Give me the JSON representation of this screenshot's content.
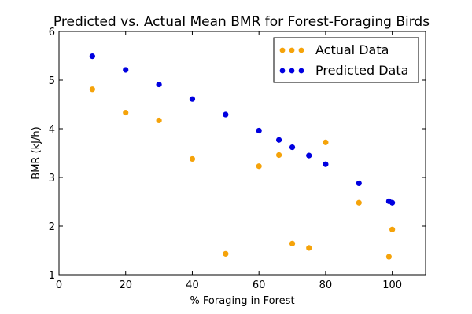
{
  "chart_data": {
    "type": "scatter",
    "title": "Predicted vs. Actual Mean BMR for Forest-Foraging Birds",
    "xlabel": "% Foraging in Forest",
    "ylabel": "BMR (kJ/h)",
    "xlim": [
      0,
      110
    ],
    "ylim": [
      1,
      6
    ],
    "xticks": [
      0,
      20,
      40,
      60,
      80,
      100
    ],
    "yticks": [
      1,
      2,
      3,
      4,
      5,
      6
    ],
    "grid": false,
    "legend_position": "top-right",
    "series": [
      {
        "name": "Actual Data",
        "color": "#f5a30a",
        "points": [
          {
            "x": 10,
            "y": 4.81
          },
          {
            "x": 20,
            "y": 4.33
          },
          {
            "x": 30,
            "y": 4.17
          },
          {
            "x": 40,
            "y": 3.38
          },
          {
            "x": 50,
            "y": 1.43
          },
          {
            "x": 60,
            "y": 3.23
          },
          {
            "x": 66,
            "y": 3.46
          },
          {
            "x": 70,
            "y": 1.64
          },
          {
            "x": 75,
            "y": 1.55
          },
          {
            "x": 80,
            "y": 3.72
          },
          {
            "x": 90,
            "y": 2.48
          },
          {
            "x": 99,
            "y": 1.37
          },
          {
            "x": 100,
            "y": 1.93
          }
        ]
      },
      {
        "name": "Predicted Data",
        "color": "#0000e0",
        "points": [
          {
            "x": 10,
            "y": 5.49
          },
          {
            "x": 20,
            "y": 5.21
          },
          {
            "x": 30,
            "y": 4.91
          },
          {
            "x": 40,
            "y": 4.61
          },
          {
            "x": 50,
            "y": 4.29
          },
          {
            "x": 60,
            "y": 3.96
          },
          {
            "x": 66,
            "y": 3.77
          },
          {
            "x": 70,
            "y": 3.62
          },
          {
            "x": 75,
            "y": 3.45
          },
          {
            "x": 80,
            "y": 3.27
          },
          {
            "x": 90,
            "y": 2.88
          },
          {
            "x": 99,
            "y": 2.51
          },
          {
            "x": 100,
            "y": 2.48
          }
        ]
      }
    ]
  }
}
